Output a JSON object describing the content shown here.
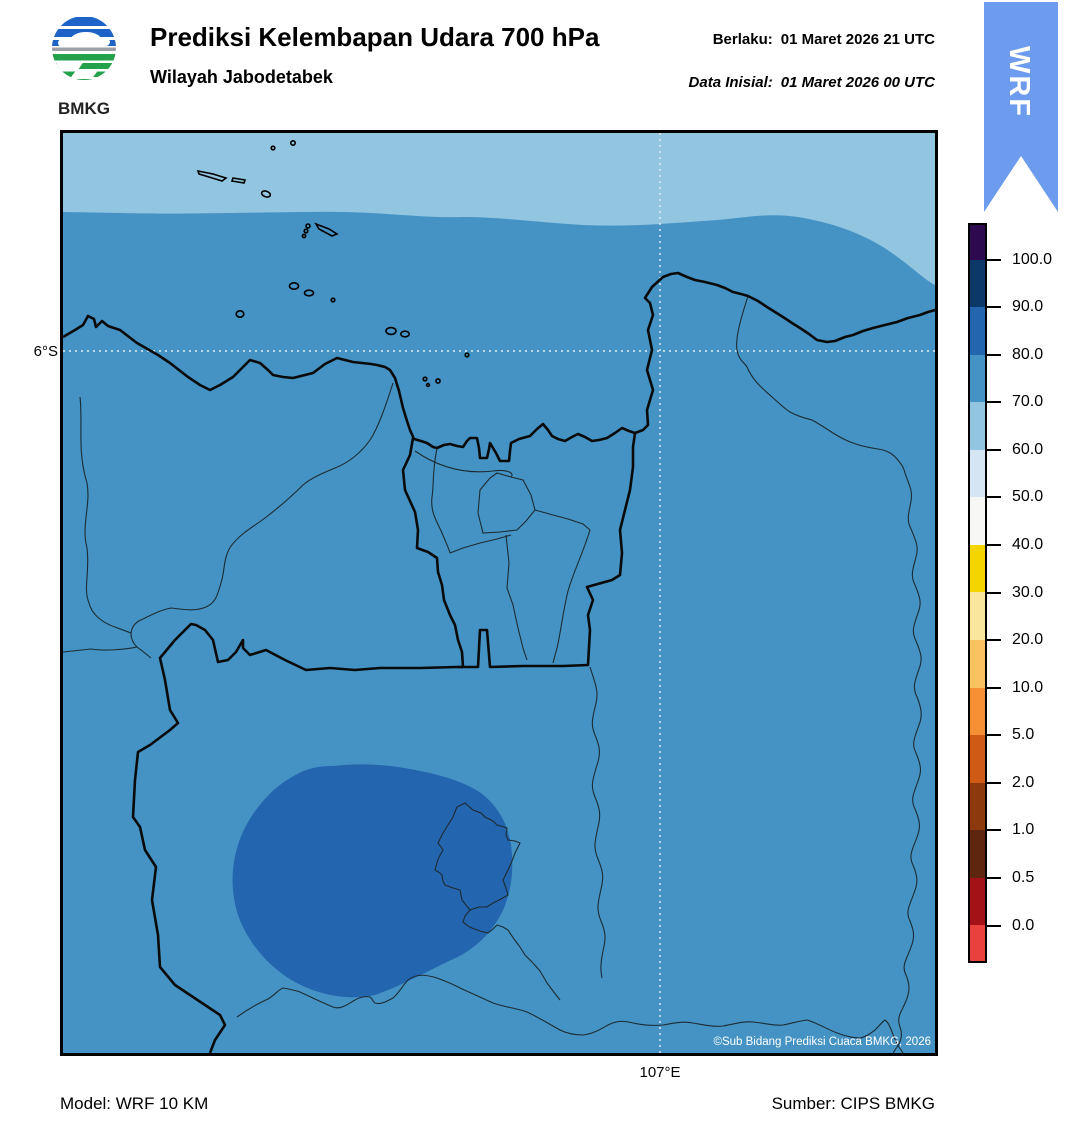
{
  "header": {
    "logo_text": "BMKG",
    "title": "Prediksi Kelembapan Udara 700 hPa",
    "subtitle": "Wilayah Jabodetabek",
    "valid_label": "Berlaku:",
    "valid_value": "01 Maret 2026 21 UTC",
    "init_label": "Data Inisial:",
    "init_value": "01 Maret 2026 00 UTC",
    "ribbon_text": "WRF",
    "ribbon_color": "#6D9BEE"
  },
  "map": {
    "y_axis_label": "6°S",
    "x_axis_label": "107°E",
    "copyright": "©Sub Bidang Prediksi Cuaca BMKG, 2026"
  },
  "footer": {
    "model": "Model: WRF 10 KM",
    "source": "Sumber: CIPS BMKG"
  },
  "chart_data": {
    "type": "heatmap",
    "title": "Prediksi Kelembapan Udara 700 hPa",
    "subtitle": "Wilayah Jabodetabek",
    "variable": "Relative humidity at 700 hPa",
    "units": "%",
    "valid_time": "01 Maret 2026 21 UTC",
    "initial_time": "01 Maret 2026 00 UTC",
    "model": "WRF 10 KM",
    "source": "CIPS BMKG",
    "gridlines": {
      "lat_tick": "6°S",
      "lon_tick": "107°E",
      "style": "dotted"
    },
    "colorbar": {
      "tick_labels": [
        "100.0",
        "90.0",
        "80.0",
        "70.0",
        "60.0",
        "50.0",
        "40.0",
        "30.0",
        "20.0",
        "10.0",
        "5.0",
        "2.0",
        "1.0",
        "0.5",
        "0.0"
      ],
      "segment_colors_top_to_bottom": [
        "#2D0A4F",
        "#0B3866",
        "#2365AF",
        "#4493C4",
        "#92C5E0",
        "#D6E5F4",
        "#F7F7F5",
        "#F5D500",
        "#FAE69C",
        "#FBC35F",
        "#F59035",
        "#CE5A15",
        "#8C3A0D",
        "#5E260E",
        "#A31217",
        "#E8413E"
      ]
    },
    "map_regions": [
      {
        "value_range": "60-70 %",
        "where": "northern band over the Java Sea",
        "color": "#92C5E0"
      },
      {
        "value_range": "70-80 %",
        "where": "most of the Jabodetabek domain",
        "color": "#4493C4"
      },
      {
        "value_range": "80-90 %",
        "where": "rounded area in the south around Bogor",
        "color": "#2365AF"
      }
    ]
  }
}
